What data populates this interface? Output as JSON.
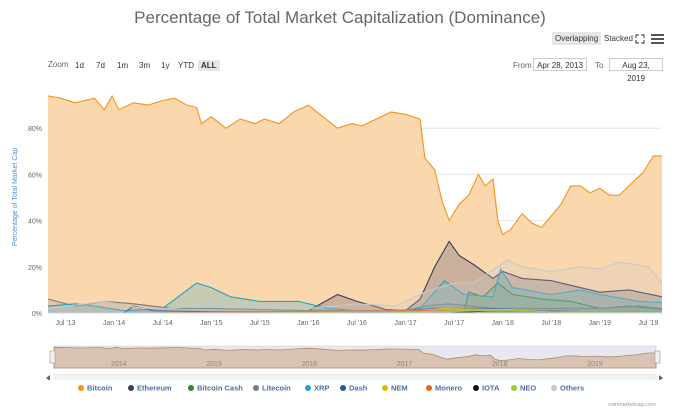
{
  "title": "Percentage of Total Market Capitalization (Dominance)",
  "view_toggle": {
    "overlapping": "Overlapping",
    "stacked": "Stacked",
    "active": "Overlapping"
  },
  "icons": {
    "fullscreen": "fullscreen-icon",
    "menu": "hamburger-menu-icon"
  },
  "zoom": {
    "label": "Zoom",
    "options": [
      "1d",
      "7d",
      "1m",
      "3m",
      "1y",
      "YTD",
      "ALL"
    ],
    "active": "ALL"
  },
  "range": {
    "from_label": "From",
    "from_value": "Apr 28, 2013",
    "to_label": "To",
    "to_value": "Aug 23, 2019"
  },
  "credit": "coinmarketcap.com",
  "chart_data": {
    "type": "area",
    "title": "Percentage of Total Market Capitalization (Dominance)",
    "ylabel": "Percentage of Total Market Cap",
    "xlabel": "",
    "x_start": 2013.32,
    "x_end": 2019.64,
    "ylim": [
      0,
      100
    ],
    "yticks": [
      0,
      20,
      40,
      60,
      80
    ],
    "ytick_labels": [
      "0%",
      "20%",
      "40%",
      "60%",
      "80%"
    ],
    "xticks": [
      {
        "label": "Jul '13",
        "x": 2013.5
      },
      {
        "label": "Jan '14",
        "x": 2014.0
      },
      {
        "label": "Jul '14",
        "x": 2014.5
      },
      {
        "label": "Jan '15",
        "x": 2015.0
      },
      {
        "label": "Jul '15",
        "x": 2015.5
      },
      {
        "label": "Jan '16",
        "x": 2016.0
      },
      {
        "label": "Jul '16",
        "x": 2016.5
      },
      {
        "label": "Jan '17",
        "x": 2017.0
      },
      {
        "label": "Jul '17",
        "x": 2017.5
      },
      {
        "label": "Jan '18",
        "x": 2018.0
      },
      {
        "label": "Jul '18",
        "x": 2018.5
      },
      {
        "label": "Jan '19",
        "x": 2019.0
      },
      {
        "label": "Jul '19",
        "x": 2019.5
      }
    ],
    "navigator_labels": [
      {
        "label": "2014",
        "x": 2014.0
      },
      {
        "label": "2015",
        "x": 2015.0
      },
      {
        "label": "2016",
        "x": 2016.0
      },
      {
        "label": "2017",
        "x": 2017.0
      },
      {
        "label": "2018",
        "x": 2018.0
      },
      {
        "label": "2019",
        "x": 2019.0
      }
    ],
    "series": [
      {
        "name": "Bitcoin",
        "color": "#f7931a",
        "fill": "#fbd7ae",
        "points": [
          [
            2013.32,
            94
          ],
          [
            2013.45,
            93
          ],
          [
            2013.6,
            91
          ],
          [
            2013.8,
            93
          ],
          [
            2013.9,
            88
          ],
          [
            2013.98,
            94
          ],
          [
            2014.05,
            88
          ],
          [
            2014.2,
            91
          ],
          [
            2014.35,
            90
          ],
          [
            2014.5,
            92
          ],
          [
            2014.62,
            93
          ],
          [
            2014.75,
            90
          ],
          [
            2014.85,
            89
          ],
          [
            2014.9,
            82
          ],
          [
            2015.0,
            85
          ],
          [
            2015.15,
            80
          ],
          [
            2015.3,
            84
          ],
          [
            2015.45,
            82
          ],
          [
            2015.55,
            84
          ],
          [
            2015.7,
            82
          ],
          [
            2015.85,
            87
          ],
          [
            2016.0,
            90
          ],
          [
            2016.15,
            85
          ],
          [
            2016.3,
            80
          ],
          [
            2016.45,
            82
          ],
          [
            2016.55,
            81
          ],
          [
            2016.7,
            84
          ],
          [
            2016.85,
            87
          ],
          [
            2017.0,
            86
          ],
          [
            2017.15,
            84
          ],
          [
            2017.2,
            67
          ],
          [
            2017.3,
            62
          ],
          [
            2017.38,
            48
          ],
          [
            2017.45,
            40
          ],
          [
            2017.55,
            47
          ],
          [
            2017.65,
            51
          ],
          [
            2017.75,
            60
          ],
          [
            2017.82,
            55
          ],
          [
            2017.9,
            58
          ],
          [
            2017.95,
            40
          ],
          [
            2018.0,
            34
          ],
          [
            2018.08,
            36
          ],
          [
            2018.2,
            43
          ],
          [
            2018.3,
            39
          ],
          [
            2018.4,
            37
          ],
          [
            2018.5,
            42
          ],
          [
            2018.6,
            47
          ],
          [
            2018.7,
            55
          ],
          [
            2018.8,
            55
          ],
          [
            2018.9,
            52
          ],
          [
            2019.0,
            54
          ],
          [
            2019.1,
            51
          ],
          [
            2019.2,
            51
          ],
          [
            2019.3,
            55
          ],
          [
            2019.45,
            61
          ],
          [
            2019.55,
            68
          ],
          [
            2019.64,
            68
          ]
        ]
      },
      {
        "name": "Ethereum",
        "color": "#3c3c5c",
        "fill": "rgba(60,60,100,0.25)",
        "points": [
          [
            2015.6,
            0
          ],
          [
            2016.0,
            1
          ],
          [
            2016.3,
            8
          ],
          [
            2016.5,
            5
          ],
          [
            2016.8,
            1.5
          ],
          [
            2017.0,
            1
          ],
          [
            2017.15,
            6
          ],
          [
            2017.3,
            20
          ],
          [
            2017.45,
            31
          ],
          [
            2017.55,
            25
          ],
          [
            2017.7,
            21
          ],
          [
            2017.9,
            15
          ],
          [
            2018.0,
            18
          ],
          [
            2018.2,
            15
          ],
          [
            2018.5,
            14
          ],
          [
            2018.7,
            12
          ],
          [
            2019.0,
            9
          ],
          [
            2019.3,
            10
          ],
          [
            2019.64,
            7
          ]
        ]
      },
      {
        "name": "Bitcoin Cash",
        "color": "#2d8a2d",
        "fill": "rgba(45,138,45,0.15)",
        "points": [
          [
            2017.6,
            0
          ],
          [
            2017.65,
            9
          ],
          [
            2017.8,
            7
          ],
          [
            2017.95,
            13
          ],
          [
            2018.1,
            8
          ],
          [
            2018.4,
            6
          ],
          [
            2018.7,
            5
          ],
          [
            2019.0,
            2
          ],
          [
            2019.3,
            3
          ],
          [
            2019.64,
            1.5
          ]
        ]
      },
      {
        "name": "Litecoin",
        "color": "#7a7a7a",
        "fill": "rgba(130,130,130,0.2)",
        "points": [
          [
            2013.32,
            6
          ],
          [
            2013.6,
            3
          ],
          [
            2013.9,
            5
          ],
          [
            2014.2,
            4
          ],
          [
            2014.6,
            2
          ],
          [
            2015.0,
            2
          ],
          [
            2015.5,
            1.5
          ],
          [
            2016.0,
            1
          ],
          [
            2016.5,
            1
          ],
          [
            2017.0,
            1
          ],
          [
            2017.2,
            3
          ],
          [
            2017.45,
            4
          ],
          [
            2017.9,
            2
          ],
          [
            2018.3,
            2
          ],
          [
            2018.7,
            2
          ],
          [
            2019.0,
            2
          ],
          [
            2019.4,
            3
          ],
          [
            2019.64,
            2
          ]
        ]
      },
      {
        "name": "XRP",
        "color": "#23a3c4",
        "fill": "rgba(35,163,196,0.25)",
        "points": [
          [
            2013.32,
            3
          ],
          [
            2013.6,
            4
          ],
          [
            2013.8,
            3
          ],
          [
            2014.1,
            1
          ],
          [
            2014.5,
            2
          ],
          [
            2014.85,
            13
          ],
          [
            2015.0,
            11
          ],
          [
            2015.2,
            7
          ],
          [
            2015.5,
            5
          ],
          [
            2015.9,
            5
          ],
          [
            2016.2,
            2
          ],
          [
            2016.5,
            1
          ],
          [
            2016.9,
            1
          ],
          [
            2017.15,
            2
          ],
          [
            2017.4,
            14
          ],
          [
            2017.6,
            8
          ],
          [
            2017.9,
            7
          ],
          [
            2017.98,
            19
          ],
          [
            2018.1,
            11
          ],
          [
            2018.5,
            8
          ],
          [
            2018.8,
            10
          ],
          [
            2019.0,
            8
          ],
          [
            2019.4,
            5
          ],
          [
            2019.64,
            4.5
          ]
        ]
      },
      {
        "name": "Dash",
        "color": "#1e5c8c",
        "fill": "rgba(30,92,140,0.15)",
        "points": [
          [
            2014.1,
            0
          ],
          [
            2014.2,
            3
          ],
          [
            2014.4,
            1
          ],
          [
            2015.0,
            0.5
          ],
          [
            2016.0,
            0.5
          ],
          [
            2017.0,
            1
          ],
          [
            2017.3,
            2
          ],
          [
            2017.9,
            2
          ],
          [
            2018.3,
            1
          ],
          [
            2019.0,
            0.5
          ],
          [
            2019.64,
            0.3
          ]
        ]
      },
      {
        "name": "NEM",
        "color": "#e6b800",
        "fill": "rgba(230,184,0,0.1)",
        "points": [
          [
            2015.3,
            0
          ],
          [
            2017.1,
            1
          ],
          [
            2017.4,
            2
          ],
          [
            2017.9,
            1.5
          ],
          [
            2018.1,
            1.5
          ],
          [
            2018.5,
            0.5
          ],
          [
            2019.64,
            0.2
          ]
        ]
      },
      {
        "name": "Monero",
        "color": "#e8651f",
        "fill": "rgba(232,101,31,0.1)",
        "points": [
          [
            2014.3,
            0
          ],
          [
            2016.7,
            1
          ],
          [
            2017.0,
            1
          ],
          [
            2017.5,
            1
          ],
          [
            2018.0,
            1
          ],
          [
            2018.5,
            0.7
          ],
          [
            2019.64,
            0.5
          ]
        ]
      },
      {
        "name": "IOTA",
        "color": "#111111",
        "fill": "rgba(17,17,17,0.08)",
        "points": [
          [
            2017.45,
            0
          ],
          [
            2017.9,
            1
          ],
          [
            2018.1,
            1
          ],
          [
            2018.5,
            0.5
          ],
          [
            2019.64,
            0.2
          ]
        ]
      },
      {
        "name": "NEO",
        "color": "#9acd32",
        "fill": "rgba(154,205,50,0.1)",
        "points": [
          [
            2016.8,
            0
          ],
          [
            2017.5,
            1
          ],
          [
            2017.9,
            1
          ],
          [
            2018.1,
            1
          ],
          [
            2018.5,
            0.5
          ],
          [
            2019.64,
            0.3
          ]
        ]
      },
      {
        "name": "Others",
        "color": "#c8c8c8",
        "fill": "rgba(200,200,200,0.25)",
        "points": [
          [
            2013.32,
            2
          ],
          [
            2013.9,
            5
          ],
          [
            2014.3,
            2
          ],
          [
            2014.6,
            2
          ],
          [
            2015.0,
            4
          ],
          [
            2015.5,
            4
          ],
          [
            2016.0,
            2
          ],
          [
            2016.5,
            4
          ],
          [
            2016.9,
            3
          ],
          [
            2017.2,
            9
          ],
          [
            2017.5,
            13
          ],
          [
            2017.7,
            13
          ],
          [
            2017.95,
            20
          ],
          [
            2018.05,
            23
          ],
          [
            2018.2,
            20
          ],
          [
            2018.5,
            18
          ],
          [
            2018.8,
            20
          ],
          [
            2019.0,
            19
          ],
          [
            2019.2,
            22
          ],
          [
            2019.5,
            20
          ],
          [
            2019.64,
            13
          ]
        ]
      }
    ]
  }
}
